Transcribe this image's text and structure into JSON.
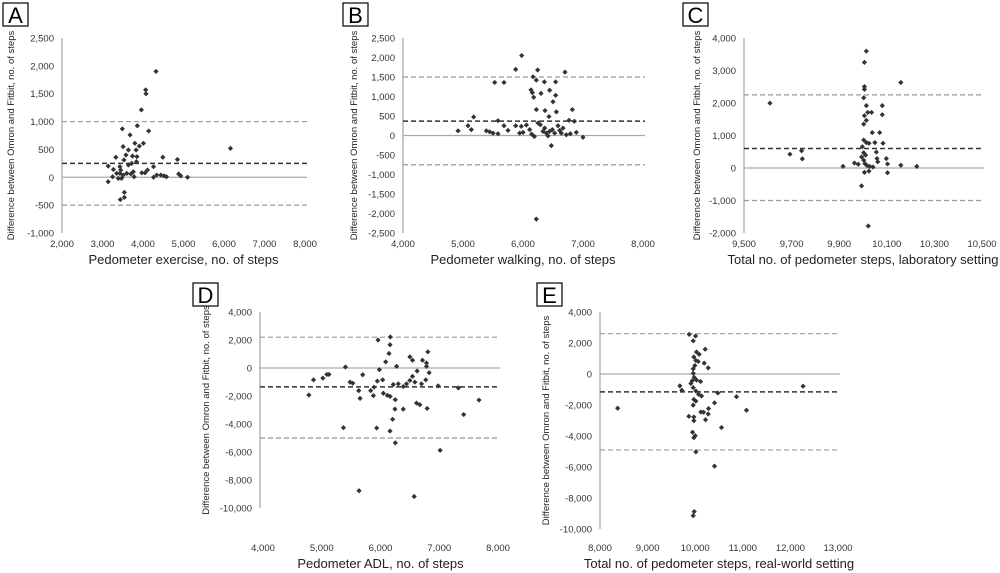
{
  "chart_data": [
    {
      "type": "scatter",
      "panel_label": "A",
      "xlabel": "Pedometer exercise, no. of steps",
      "ylabel": "Difference between Omron and Fitbit, no. of steps",
      "xlim": [
        2000,
        8000
      ],
      "ylim": [
        -1000,
        2500
      ],
      "xticks": [
        "2,000",
        "3,000",
        "4,000",
        "5,000",
        "6,000",
        "7,000",
        "8,000"
      ],
      "yticks": [
        "2,500",
        "2,000",
        "1,500",
        "1,000",
        "500",
        "0",
        "-500",
        "-1,000"
      ],
      "zero_line": 0,
      "mean_difference": 250,
      "limits_of_agreement": [
        -500,
        1000
      ],
      "colors": {
        "points": "#333333",
        "mean": "#333333",
        "limits": "#999999",
        "zero": "#aaaaaa"
      },
      "points": [
        [
          4320,
          1900
        ],
        [
          4066,
          1570
        ],
        [
          4074,
          1500
        ],
        [
          3960,
          1210
        ],
        [
          3860,
          925
        ],
        [
          4140,
          830
        ],
        [
          3490,
          870
        ],
        [
          3680,
          760
        ],
        [
          3800,
          610
        ],
        [
          4010,
          610
        ],
        [
          3510,
          550
        ],
        [
          3640,
          490
        ],
        [
          3830,
          490
        ],
        [
          3910,
          560
        ],
        [
          3330,
          360
        ],
        [
          3580,
          400
        ],
        [
          3740,
          380
        ],
        [
          3850,
          370
        ],
        [
          3840,
          280
        ],
        [
          6160,
          520
        ],
        [
          4490,
          360
        ],
        [
          4850,
          320
        ],
        [
          3140,
          200
        ],
        [
          3270,
          140
        ],
        [
          3430,
          190
        ],
        [
          3530,
          310
        ],
        [
          3640,
          220
        ],
        [
          3720,
          250
        ],
        [
          4260,
          190
        ],
        [
          3250,
          10
        ],
        [
          3350,
          70
        ],
        [
          3430,
          70
        ],
        [
          3450,
          130
        ],
        [
          3510,
          40
        ],
        [
          3600,
          70
        ],
        [
          3700,
          60
        ],
        [
          3760,
          100
        ],
        [
          3780,
          10
        ],
        [
          3970,
          80
        ],
        [
          4050,
          80
        ],
        [
          4110,
          130
        ],
        [
          4260,
          0
        ],
        [
          4340,
          40
        ],
        [
          4440,
          40
        ],
        [
          4520,
          25
        ],
        [
          4580,
          10
        ],
        [
          4880,
          60
        ],
        [
          4930,
          25
        ],
        [
          5100,
          0
        ],
        [
          3140,
          -80
        ],
        [
          3440,
          -400
        ],
        [
          3540,
          -360
        ],
        [
          3540,
          -270
        ],
        [
          3390,
          -20
        ],
        [
          3470,
          -20
        ]
      ]
    },
    {
      "type": "scatter",
      "panel_label": "B",
      "xlabel": "Pedometer walking, no. of steps",
      "ylabel": "Difference between Omron and Fitbit, no. of steps",
      "xlim": [
        4000,
        8000
      ],
      "ylim": [
        -2500,
        2500
      ],
      "xticks": [
        "4,000",
        "5,000",
        "6,000",
        "7,000",
        "8,000"
      ],
      "yticks": [
        "2,500",
        "2,000",
        "1,500",
        "1,000",
        "500",
        "0",
        "-500",
        "-1,000",
        "-1,500",
        "-2,000",
        "-2,500"
      ],
      "zero_line": 0,
      "mean_difference": 370,
      "limits_of_agreement": [
        -750,
        1500
      ],
      "colors": {
        "points": "#333333",
        "mean": "#333333",
        "limits": "#999999",
        "zero": "#aaaaaa"
      },
      "points": [
        [
          5978,
          2050
        ],
        [
          5878,
          1695
        ],
        [
          6244,
          1680
        ],
        [
          6700,
          1625
        ],
        [
          5528,
          1360
        ],
        [
          5683,
          1360
        ],
        [
          6167,
          1505
        ],
        [
          6222,
          1420
        ],
        [
          6356,
          1375
        ],
        [
          6544,
          1375
        ],
        [
          6133,
          1170
        ],
        [
          6156,
          1100
        ],
        [
          6300,
          1080
        ],
        [
          6444,
          1160
        ],
        [
          6178,
          980
        ],
        [
          6544,
          1030
        ],
        [
          6500,
          865
        ],
        [
          6222,
          665
        ],
        [
          6367,
          640
        ],
        [
          6556,
          605
        ],
        [
          6433,
          485
        ],
        [
          6822,
          665
        ],
        [
          5178,
          475
        ],
        [
          5583,
          380
        ],
        [
          6767,
          390
        ],
        [
          6856,
          365
        ],
        [
          4917,
          120
        ],
        [
          5083,
          250
        ],
        [
          5139,
          150
        ],
        [
          5389,
          120
        ],
        [
          5444,
          95
        ],
        [
          5500,
          60
        ],
        [
          5583,
          45
        ],
        [
          5683,
          250
        ],
        [
          5750,
          130
        ],
        [
          5878,
          250
        ],
        [
          5972,
          235
        ],
        [
          6056,
          270
        ],
        [
          6111,
          150
        ],
        [
          5944,
          60
        ],
        [
          6000,
          80
        ],
        [
          6250,
          320
        ],
        [
          6289,
          275
        ],
        [
          6333,
          105
        ],
        [
          6361,
          190
        ],
        [
          6389,
          60
        ],
        [
          6417,
          -10
        ],
        [
          6444,
          105
        ],
        [
          6489,
          150
        ],
        [
          6528,
          60
        ],
        [
          6583,
          250
        ],
        [
          6611,
          130
        ],
        [
          6639,
          60
        ],
        [
          6667,
          190
        ],
        [
          6722,
          20
        ],
        [
          6789,
          45
        ],
        [
          6889,
          80
        ],
        [
          7000,
          -45
        ],
        [
          6189,
          -25
        ],
        [
          6472,
          -260
        ],
        [
          6222,
          -2145
        ],
        [
          6144,
          35
        ]
      ]
    },
    {
      "type": "scatter",
      "panel_label": "C",
      "xlabel": "Total no. of pedometer steps, laboratory setting",
      "ylabel": "Difference between Omron and Fitbit, no. of steps",
      "xlim": [
        9500,
        10500
      ],
      "ylim": [
        -2000,
        4000
      ],
      "xticks": [
        "9,500",
        "9,700",
        "9,900",
        "10,100",
        "10,300",
        "10,500"
      ],
      "yticks": [
        "4,000",
        "3,000",
        "2,000",
        "1,000",
        "0",
        "-1,000",
        "-2,000"
      ],
      "zero_line": 0,
      "mean_difference": 600,
      "limits_of_agreement": [
        -1000,
        2250
      ],
      "colors": {
        "points": "#333333",
        "mean": "#333333",
        "limits": "#999999",
        "zero": "#aaaaaa"
      },
      "points": [
        [
          10014,
          3595
        ],
        [
          10006,
          3250
        ],
        [
          10006,
          2505
        ],
        [
          10006,
          2420
        ],
        [
          10159,
          2630
        ],
        [
          10003,
          2160
        ],
        [
          9609,
          1995
        ],
        [
          10014,
          1920
        ],
        [
          10081,
          1920
        ],
        [
          10020,
          1710
        ],
        [
          10036,
          1710
        ],
        [
          10081,
          1640
        ],
        [
          10006,
          1610
        ],
        [
          10014,
          1465
        ],
        [
          10003,
          1350
        ],
        [
          10039,
          1090
        ],
        [
          10070,
          1090
        ],
        [
          10003,
          860
        ],
        [
          10014,
          780
        ],
        [
          10025,
          760
        ],
        [
          10050,
          780
        ],
        [
          10084,
          760
        ],
        [
          9997,
          655
        ],
        [
          9742,
          530
        ],
        [
          9693,
          425
        ],
        [
          9745,
          280
        ],
        [
          10056,
          490
        ],
        [
          10059,
          290
        ],
        [
          10098,
          290
        ],
        [
          10062,
          190
        ],
        [
          10103,
          125
        ],
        [
          10159,
          85
        ],
        [
          10226,
          50
        ],
        [
          9916,
          50
        ],
        [
          9964,
          155
        ],
        [
          9980,
          115
        ],
        [
          9994,
          340
        ],
        [
          10003,
          240
        ],
        [
          10008,
          135
        ],
        [
          10017,
          75
        ],
        [
          10028,
          50
        ],
        [
          10042,
          30
        ],
        [
          10003,
          470
        ],
        [
          10011,
          395
        ],
        [
          10006,
          -135
        ],
        [
          10025,
          -95
        ],
        [
          10103,
          -145
        ],
        [
          9994,
          -550
        ],
        [
          10022,
          -1785
        ]
      ]
    },
    {
      "type": "scatter",
      "panel_label": "D",
      "xlabel": "Pedometer ADL, no. of steps",
      "ylabel": "Difference between Omron and Fitbit, no. of steps",
      "xlim": [
        4000,
        8000
      ],
      "ylim": [
        -10000,
        4000
      ],
      "xticks": [
        "4,000",
        "5,000",
        "6,000",
        "7,000",
        "8,000"
      ],
      "yticks": [
        "4,000",
        "2,000",
        "0",
        "-2,000",
        "-4,000",
        "-6,000",
        "-8,000",
        "-10,000"
      ],
      "zero_line": 0,
      "mean_difference": -1350,
      "limits_of_agreement": [
        -5000,
        2200
      ],
      "colors": {
        "points": "#333333",
        "mean": "#333333",
        "limits": "#999999",
        "zero": "#aaaaaa"
      },
      "points": [
        [
          6167,
          2215
        ],
        [
          5958,
          2000
        ],
        [
          6162,
          1660
        ],
        [
          6145,
          1035
        ],
        [
          6806,
          1155
        ],
        [
          6088,
          435
        ],
        [
          6500,
          795
        ],
        [
          6545,
          555
        ],
        [
          6715,
          555
        ],
        [
          6783,
          360
        ],
        [
          6274,
          120
        ],
        [
          5403,
          70
        ],
        [
          5981,
          -120
        ],
        [
          6783,
          120
        ],
        [
          6624,
          -215
        ],
        [
          6828,
          -335
        ],
        [
          4860,
          -845
        ],
        [
          5019,
          -725
        ],
        [
          5087,
          -460
        ],
        [
          5123,
          -460
        ],
        [
          5697,
          -480
        ],
        [
          5482,
          -1010
        ],
        [
          5528,
          -1085
        ],
        [
          5946,
          -940
        ],
        [
          6037,
          -845
        ],
        [
          6218,
          -1180
        ],
        [
          6303,
          -1130
        ],
        [
          6387,
          -1325
        ],
        [
          6444,
          -1130
        ],
        [
          6500,
          -890
        ],
        [
          6545,
          -600
        ],
        [
          6585,
          -1010
        ],
        [
          6698,
          -1130
        ],
        [
          6771,
          -845
        ],
        [
          6981,
          -1275
        ],
        [
          7326,
          -1420
        ],
        [
          4781,
          -1930
        ],
        [
          5629,
          -1615
        ],
        [
          5652,
          -2170
        ],
        [
          5833,
          -1615
        ],
        [
          5879,
          -1975
        ],
        [
          6048,
          -1805
        ],
        [
          6116,
          -1950
        ],
        [
          6162,
          -2025
        ],
        [
          6252,
          -2265
        ],
        [
          5890,
          -1370
        ],
        [
          7677,
          -2290
        ],
        [
          6246,
          -2940
        ],
        [
          6387,
          -2940
        ],
        [
          6613,
          -2505
        ],
        [
          6670,
          -2625
        ],
        [
          6794,
          -2890
        ],
        [
          7416,
          -3325
        ],
        [
          6206,
          -3665
        ],
        [
          5369,
          -4265
        ],
        [
          5935,
          -4290
        ],
        [
          6162,
          -4505
        ],
        [
          6252,
          -5350
        ],
        [
          7015,
          -5880
        ],
        [
          5635,
          -8770
        ],
        [
          6573,
          -9180
        ]
      ]
    },
    {
      "type": "scatter",
      "panel_label": "E",
      "xlabel": "Total no. of pedometer steps, real-world setting",
      "ylabel": "Difference between Omron and Fitbit, no. of steps",
      "xlim": [
        8000,
        13000
      ],
      "ylim": [
        -10000,
        4000
      ],
      "xticks": [
        "8,000",
        "9,000",
        "10,000",
        "11,000",
        "12,000",
        "13,000"
      ],
      "yticks": [
        "4,000",
        "2,000",
        "0",
        "-2,000",
        "-4,000",
        "-6,000",
        "-8,000",
        "-10,000"
      ],
      "zero_line": 0,
      "mean_difference": -1150,
      "limits_of_agreement": [
        -4900,
        2600
      ],
      "colors": {
        "points": "#333333",
        "mean": "#333333",
        "limits": "#999999",
        "zero": "#aaaaaa"
      },
      "points": [
        [
          9874,
          2555
        ],
        [
          10007,
          2450
        ],
        [
          9958,
          2140
        ],
        [
          10210,
          1595
        ],
        [
          10028,
          1420
        ],
        [
          10084,
          1270
        ],
        [
          9972,
          1095
        ],
        [
          10014,
          875
        ],
        [
          10063,
          810
        ],
        [
          10189,
          700
        ],
        [
          10273,
          395
        ],
        [
          9958,
          330
        ],
        [
          9993,
          545
        ],
        [
          9958,
          45
        ],
        [
          9979,
          -220
        ],
        [
          9937,
          -435
        ],
        [
          10028,
          -395
        ],
        [
          10112,
          -480
        ],
        [
          9678,
          -765
        ],
        [
          9720,
          -1050
        ],
        [
          9909,
          -610
        ],
        [
          9958,
          -875
        ],
        [
          10014,
          -1095
        ],
        [
          10070,
          -1310
        ],
        [
          10133,
          -1420
        ],
        [
          9972,
          -1640
        ],
        [
          10014,
          -1750
        ],
        [
          9958,
          -2010
        ],
        [
          12266,
          -785
        ],
        [
          10476,
          -1225
        ],
        [
          10867,
          -1465
        ],
        [
          10406,
          -1860
        ],
        [
          10280,
          -2230
        ],
        [
          8371,
          -2210
        ],
        [
          11077,
          -2340
        ],
        [
          10119,
          -2450
        ],
        [
          10175,
          -2470
        ],
        [
          10273,
          -2580
        ],
        [
          9867,
          -2730
        ],
        [
          9972,
          -2775
        ],
        [
          9972,
          -3015
        ],
        [
          10217,
          -2950
        ],
        [
          10552,
          -3455
        ],
        [
          9944,
          -3760
        ],
        [
          10000,
          -3980
        ],
        [
          9972,
          -4110
        ],
        [
          10014,
          -5025
        ],
        [
          10406,
          -5945
        ],
        [
          9979,
          -8875
        ],
        [
          9958,
          -9135
        ]
      ]
    }
  ]
}
